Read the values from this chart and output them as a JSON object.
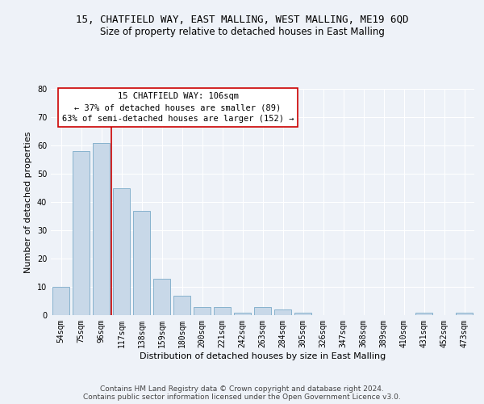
{
  "title1": "15, CHATFIELD WAY, EAST MALLING, WEST MALLING, ME19 6QD",
  "title2": "Size of property relative to detached houses in East Malling",
  "xlabel": "Distribution of detached houses by size in East Malling",
  "ylabel": "Number of detached properties",
  "categories": [
    "54sqm",
    "75sqm",
    "96sqm",
    "117sqm",
    "138sqm",
    "159sqm",
    "180sqm",
    "200sqm",
    "221sqm",
    "242sqm",
    "263sqm",
    "284sqm",
    "305sqm",
    "326sqm",
    "347sqm",
    "368sqm",
    "389sqm",
    "410sqm",
    "431sqm",
    "452sqm",
    "473sqm"
  ],
  "values": [
    10,
    58,
    61,
    45,
    37,
    13,
    7,
    3,
    3,
    1,
    3,
    2,
    1,
    0,
    0,
    0,
    0,
    0,
    1,
    0,
    1
  ],
  "bar_color": "#c8d8e8",
  "bar_edge_color": "#7aaac8",
  "background_color": "#eef2f8",
  "grid_color": "#ffffff",
  "ylim": [
    0,
    80
  ],
  "yticks": [
    0,
    10,
    20,
    30,
    40,
    50,
    60,
    70,
    80
  ],
  "annotation_line1": "15 CHATFIELD WAY: 106sqm",
  "annotation_line2": "← 37% of detached houses are smaller (89)",
  "annotation_line3": "63% of semi-detached houses are larger (152) →",
  "annotation_box_color": "#ffffff",
  "annotation_box_edge_color": "#cc0000",
  "vline_color": "#cc0000",
  "footer1": "Contains HM Land Registry data © Crown copyright and database right 2024.",
  "footer2": "Contains public sector information licensed under the Open Government Licence v3.0.",
  "title1_fontsize": 9,
  "title2_fontsize": 8.5,
  "xlabel_fontsize": 8,
  "ylabel_fontsize": 8,
  "tick_fontsize": 7,
  "annotation_fontsize": 7.5,
  "footer_fontsize": 6.5
}
